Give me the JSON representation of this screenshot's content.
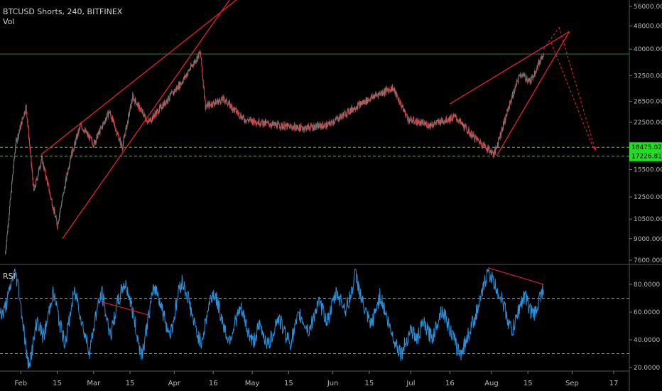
{
  "header": {
    "symbol_line": "BTCUSD Shorts, 240, BITFINEX",
    "volume_label": "Vol",
    "rsi_label": "RSI"
  },
  "colors": {
    "background": "#000000",
    "candle_up": "#7a7a7a",
    "candle_down": "#e04040",
    "trendline": "#d81f2a",
    "support_line": "#22dd22",
    "support_tag": "#22dd22",
    "horizontal_level": "#2e7d32",
    "rsi_line": "#2d8fd8",
    "rsi_band": "#9a9a9a",
    "axis_text": "#b8b8b8"
  },
  "chart_data": [
    {
      "type": "candlestick",
      "title": "BTCUSD Shorts, 240, BITFINEX",
      "y_scale": "log",
      "y_ticks": [
        "56000.0000",
        "48000.0000",
        "40000.0000",
        "32500.0000",
        "26500.0000",
        "22500.0000",
        "15500.0000",
        "12500.0000",
        "10500.0000",
        "9000.0000",
        "7600.0000"
      ],
      "y_tick_values": [
        56000,
        48000,
        40000,
        32500,
        26500,
        22500,
        15500,
        12500,
        10500,
        9000,
        7600
      ],
      "x_ticks": [
        "Feb",
        "15",
        "Mar",
        "15",
        "Apr",
        "16",
        "May",
        "15",
        "Jun",
        "15",
        "Jul",
        "16",
        "Aug",
        "15",
        "Sep",
        "17"
      ],
      "price_labels": [
        "18475.0226",
        "17226.8132"
      ],
      "price_label_values": [
        18475.0226,
        17226.8132
      ],
      "horizontal_level": 38500,
      "approx_close_points": [
        {
          "date": "2018-01-26",
          "price": 8000
        },
        {
          "date": "2018-01-30",
          "price": 19000
        },
        {
          "date": "2018-02-03",
          "price": 25500
        },
        {
          "date": "2018-02-06",
          "price": 13000
        },
        {
          "date": "2018-02-09",
          "price": 17000
        },
        {
          "date": "2018-02-15",
          "price": 10000
        },
        {
          "date": "2018-02-20",
          "price": 17000
        },
        {
          "date": "2018-02-24",
          "price": 22000
        },
        {
          "date": "2018-03-01",
          "price": 19000
        },
        {
          "date": "2018-03-07",
          "price": 24500
        },
        {
          "date": "2018-03-12",
          "price": 18500
        },
        {
          "date": "2018-03-16",
          "price": 27500
        },
        {
          "date": "2018-03-22",
          "price": 22500
        },
        {
          "date": "2018-03-28",
          "price": 26000
        },
        {
          "date": "2018-04-04",
          "price": 31000
        },
        {
          "date": "2018-04-11",
          "price": 39000
        },
        {
          "date": "2018-04-13",
          "price": 25500
        },
        {
          "date": "2018-04-20",
          "price": 27000
        },
        {
          "date": "2018-04-28",
          "price": 23000
        },
        {
          "date": "2018-05-10",
          "price": 22000
        },
        {
          "date": "2018-05-20",
          "price": 21500
        },
        {
          "date": "2018-05-30",
          "price": 22000
        },
        {
          "date": "2018-06-10",
          "price": 25500
        },
        {
          "date": "2018-06-18",
          "price": 28000
        },
        {
          "date": "2018-06-24",
          "price": 29500
        },
        {
          "date": "2018-06-30",
          "price": 23000
        },
        {
          "date": "2018-07-08",
          "price": 22000
        },
        {
          "date": "2018-07-18",
          "price": 23500
        },
        {
          "date": "2018-07-24",
          "price": 20500
        },
        {
          "date": "2018-08-02",
          "price": 17500
        },
        {
          "date": "2018-08-08",
          "price": 26000
        },
        {
          "date": "2018-08-12",
          "price": 33000
        },
        {
          "date": "2018-08-16",
          "price": 31000
        },
        {
          "date": "2018-08-21",
          "price": 39000
        }
      ],
      "trendlines": [
        {
          "from": {
            "date": "2018-02-09",
            "price": 17500
          },
          "to": {
            "date": "2018-04-28",
            "price": 62000
          }
        },
        {
          "from": {
            "date": "2018-02-17",
            "price": 9000
          },
          "to": {
            "date": "2018-04-24",
            "price": 62000
          }
        },
        {
          "from": {
            "date": "2018-07-16",
            "price": 26000
          },
          "to": {
            "date": "2018-08-31",
            "price": 46000
          }
        },
        {
          "from": {
            "date": "2018-08-03",
            "price": 17300
          },
          "to": {
            "date": "2018-08-31",
            "price": 46000
          }
        }
      ],
      "projection_dotted": [
        {
          "from": {
            "date": "2018-08-21",
            "price": 40000
          },
          "to": {
            "date": "2018-08-27",
            "price": 47500
          }
        },
        {
          "from": {
            "date": "2018-08-27",
            "price": 47500
          },
          "to": {
            "date": "2018-09-10",
            "price": 18000
          }
        },
        {
          "from": {
            "date": "2018-08-24",
            "price": 42000
          },
          "to": {
            "date": "2018-09-09",
            "price": 18500
          }
        }
      ]
    },
    {
      "type": "line",
      "title": "RSI",
      "y_ticks": [
        "80.0000",
        "60.0000",
        "40.0000",
        "20.0000"
      ],
      "y_tick_values": [
        80,
        60,
        40,
        20
      ],
      "bands": [
        70,
        30
      ],
      "series": [
        {
          "values": [
            62,
            58,
            66,
            74,
            85,
            88,
            78,
            60,
            42,
            22,
            28,
            40,
            55,
            48,
            42,
            50,
            62,
            74,
            68,
            55,
            46,
            38,
            48,
            62,
            74,
            70,
            58,
            48,
            40,
            32,
            44,
            58,
            66,
            74,
            62,
            50,
            44,
            56,
            66,
            72,
            80,
            78,
            70,
            60,
            48,
            36,
            30,
            42,
            56,
            68,
            78,
            74,
            66,
            58,
            50,
            44,
            52,
            64,
            78,
            82,
            76,
            70,
            60,
            50,
            44,
            38,
            46,
            58,
            68,
            74,
            70,
            62,
            54,
            46,
            40,
            44,
            52,
            58,
            62,
            56,
            48,
            42,
            38,
            44,
            50,
            46,
            40,
            36,
            42,
            50,
            56,
            52,
            46,
            42,
            38,
            44,
            52,
            58,
            54,
            50,
            46,
            52,
            60,
            66,
            64,
            58,
            54,
            60,
            68,
            74,
            70,
            66,
            62,
            68,
            76,
            88,
            80,
            70,
            62,
            56,
            50,
            56,
            64,
            72,
            66,
            58,
            50,
            44,
            38,
            34,
            30,
            36,
            42,
            48,
            44,
            40,
            46,
            52,
            48,
            44,
            42,
            48,
            56,
            62,
            58,
            52,
            46,
            40,
            34,
            30,
            34,
            40,
            46,
            52,
            58,
            64,
            72,
            82,
            90,
            86,
            80,
            76,
            72,
            66,
            58,
            50,
            46,
            54,
            62,
            68,
            72,
            66,
            60,
            58,
            64,
            72,
            78
          ]
        }
      ],
      "trendline": {
        "from_index": 32,
        "to_index": 48
      },
      "trendline_2": {
        "from_index": 158,
        "to_index": 176
      }
    }
  ]
}
